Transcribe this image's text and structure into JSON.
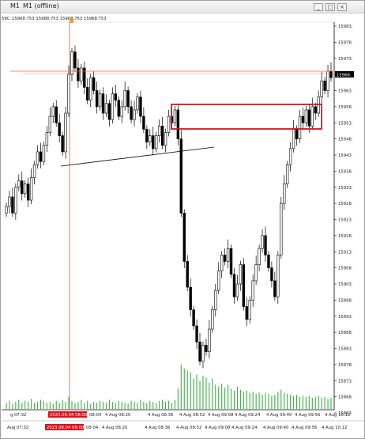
{
  "window": {
    "id_label": "M1",
    "title": "M1 (offline)",
    "edge_label": "59C",
    "buttons": [
      "_",
      "□",
      "×"
    ]
  },
  "ohlc_label": "15968.753 15968.753 15968.753 15968.753",
  "chart_data": {
    "type": "candlestick",
    "y_ticks": [
      "15983.",
      "15978.",
      "15973.",
      "15968.",
      "15963.",
      "15958.",
      "15953.",
      "15948.",
      "15943.",
      "15938.",
      "15933.",
      "15928.",
      "15923.",
      "15918.",
      "15913.",
      "15908.",
      "15903.",
      "15898.",
      "15893.",
      "15888.",
      "15883.",
      "15878.",
      "15873.",
      "15868.",
      "15863."
    ],
    "y_range": [
      15863,
      15986
    ],
    "current_price_label": "15968.",
    "x_ticks_top": [
      "g 07:32",
      "2023.08.04 08:00",
      "08:04",
      "4 Aug 08:20",
      "4 Aug 08:36",
      "4 Aug 08:52",
      "4 Aug 09:08",
      "4 Aug 09:24",
      "4 Aug 09:40",
      "4 Aug 09:56",
      "4 Aug 10:12"
    ],
    "x_ticks_bottom": [
      "Aug 07:32",
      "2023.08.04 08:00",
      "08:04",
      "4 Aug 08:20",
      "4 Aug 08:36",
      "4 Aug 08:52",
      "4 Aug 09:08",
      "4 Aug 09:24",
      "4 Aug 09:40",
      "4 Aug 09:56",
      "4 Aug 10:12"
    ],
    "close_series": [
      15927,
      15930,
      15925,
      15933,
      15935,
      15931,
      15934,
      15929,
      15936,
      15940,
      15944,
      15941,
      15946,
      15950,
      15955,
      15958,
      15953,
      15949,
      15944,
      15956,
      15968,
      15975,
      15970,
      15966,
      15970,
      15964,
      15960,
      15967,
      15963,
      15958,
      15962,
      15956,
      15959,
      15954,
      15962,
      15960,
      15955,
      15958,
      15963,
      15958,
      15954,
      15957,
      15961,
      15955,
      15951,
      15947,
      15949,
      15945,
      15949,
      15952,
      15946,
      15950,
      15955,
      15953,
      15957,
      15948,
      15925,
      15910,
      15902,
      15895,
      15890,
      15885,
      15879,
      15884,
      15882,
      15889,
      15895,
      15901,
      15907,
      15912,
      15910,
      15914,
      15906,
      15899,
      15903,
      15909,
      15896,
      15892,
      15898,
      15904,
      15909,
      15914,
      15918,
      15912,
      15908,
      15904,
      15899,
      15912,
      15928,
      15934,
      15940,
      15945,
      15951,
      15948,
      15955,
      15953,
      15957,
      15952,
      15958,
      15956,
      15961,
      15966,
      15963,
      15969,
      15967
    ],
    "volume": [
      6,
      8,
      5,
      7,
      9,
      6,
      8,
      7,
      10,
      6,
      7,
      9,
      8,
      6,
      7,
      5,
      8,
      6,
      9,
      7,
      12,
      8,
      6,
      7,
      9,
      6,
      8,
      5,
      7,
      6,
      8,
      7,
      6,
      9,
      7,
      6,
      8,
      7,
      6,
      5,
      8,
      7,
      6,
      9,
      7,
      6,
      8,
      7,
      6,
      8,
      9,
      7,
      8,
      6,
      9,
      20,
      44,
      40,
      38,
      36,
      30,
      34,
      28,
      33,
      31,
      26,
      30,
      24,
      22,
      25,
      21,
      24,
      20,
      18,
      22,
      19,
      17,
      18,
      16,
      17,
      15,
      16,
      14,
      16,
      15,
      13,
      14,
      17,
      19,
      16,
      15,
      14,
      13,
      14,
      12,
      13,
      12,
      13,
      11,
      12,
      13,
      11,
      12,
      10,
      11
    ],
    "annotations": {
      "rectangle_label": "",
      "trendline_label": ""
    },
    "colors": {
      "candle": "#000000",
      "volume": "#3cb043",
      "price_line": "#e8733b",
      "rectangle": "#e0101a",
      "vline": "#e05050",
      "time_marker_bg": "#e0101a"
    }
  }
}
